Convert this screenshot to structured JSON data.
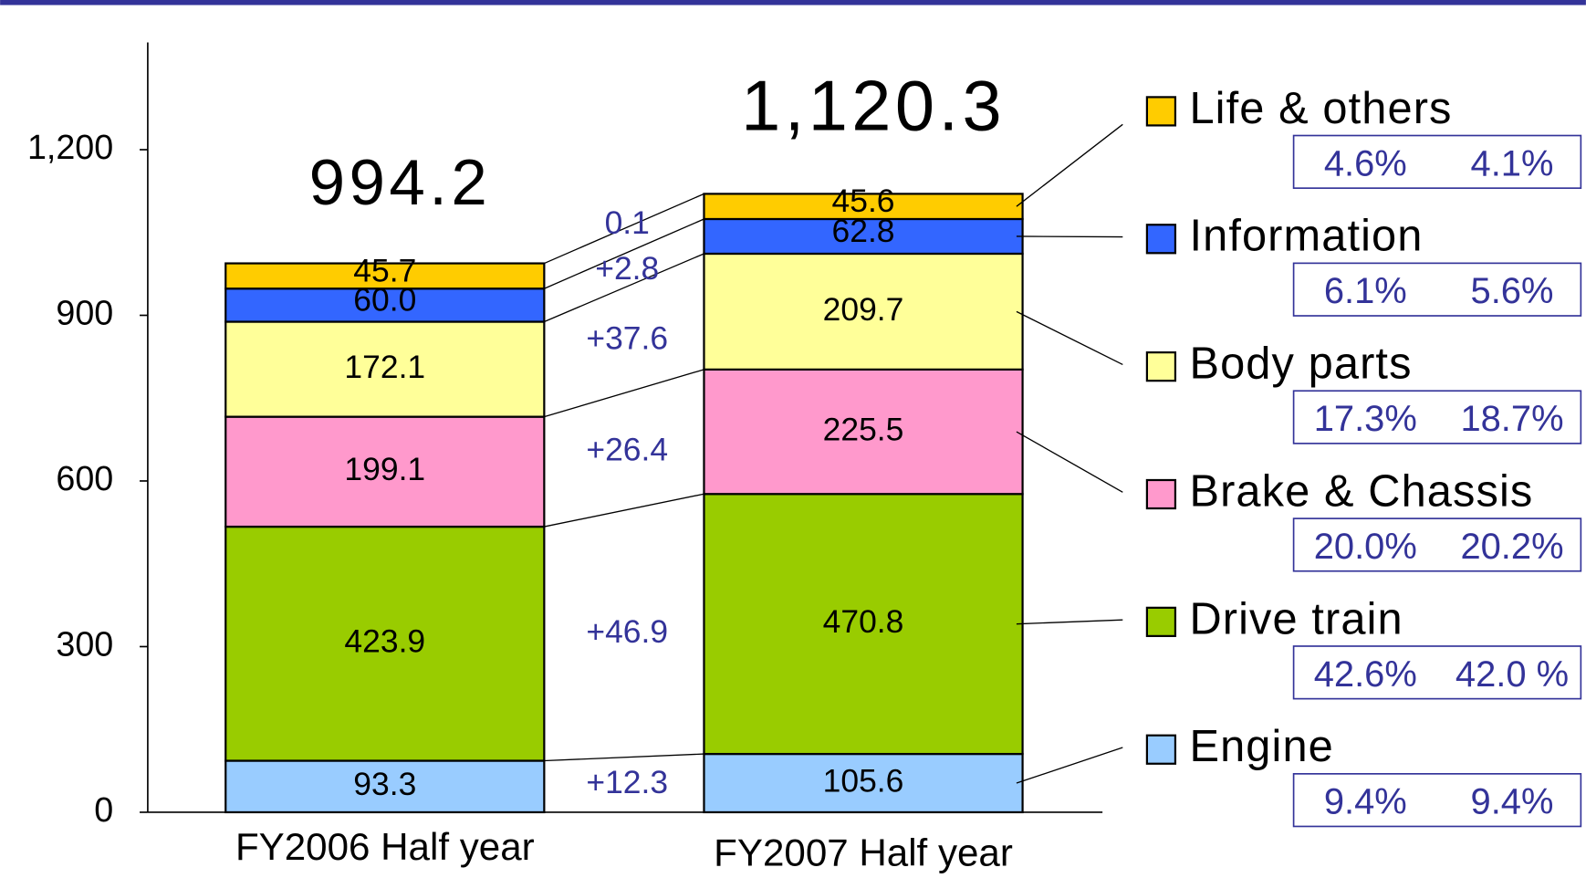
{
  "chart_data": {
    "type": "stacked_bar",
    "categories": [
      "FY2006 Half year",
      "FY2007  Half year"
    ],
    "ylim": [
      0,
      1400
    ],
    "yticks": [
      0,
      300,
      600,
      900,
      {
        "value": 1200,
        "label": "1,200"
      }
    ],
    "totals": [
      994.2,
      1120.3
    ],
    "total_labels": [
      "994.2",
      "1,120.3"
    ],
    "series": [
      {
        "name": "Engine",
        "color": "#99ccff",
        "values": [
          93.3,
          105.6
        ],
        "change": "+12.3",
        "shares": [
          "9.4%",
          "9.4%"
        ]
      },
      {
        "name": "Drive train",
        "color": "#99cc00",
        "values": [
          423.9,
          470.8
        ],
        "change": "+46.9",
        "shares": [
          "42.6%",
          "42.0 %"
        ]
      },
      {
        "name": "Brake & Chassis",
        "color": "#ff99cc",
        "values": [
          199.1,
          225.5
        ],
        "change": "+26.4",
        "shares": [
          "20.0%",
          "20.2%"
        ]
      },
      {
        "name": "Body parts",
        "color": "#ffff99",
        "values": [
          172.1,
          209.7
        ],
        "change": "+37.6",
        "shares": [
          "17.3%",
          "18.7%"
        ]
      },
      {
        "name": "Information",
        "color": "#3366ff",
        "values": [
          60.0,
          62.8
        ],
        "value_labels": [
          "60.0",
          "62.8"
        ],
        "change": "+2.8",
        "shares": [
          "6.1%",
          "5.6%"
        ]
      },
      {
        "name": "Life & others",
        "color": "#ffcc00",
        "values": [
          45.7,
          45.6
        ],
        "change": "0.1",
        "shares": [
          "4.6%",
          "4.1%"
        ]
      }
    ]
  }
}
